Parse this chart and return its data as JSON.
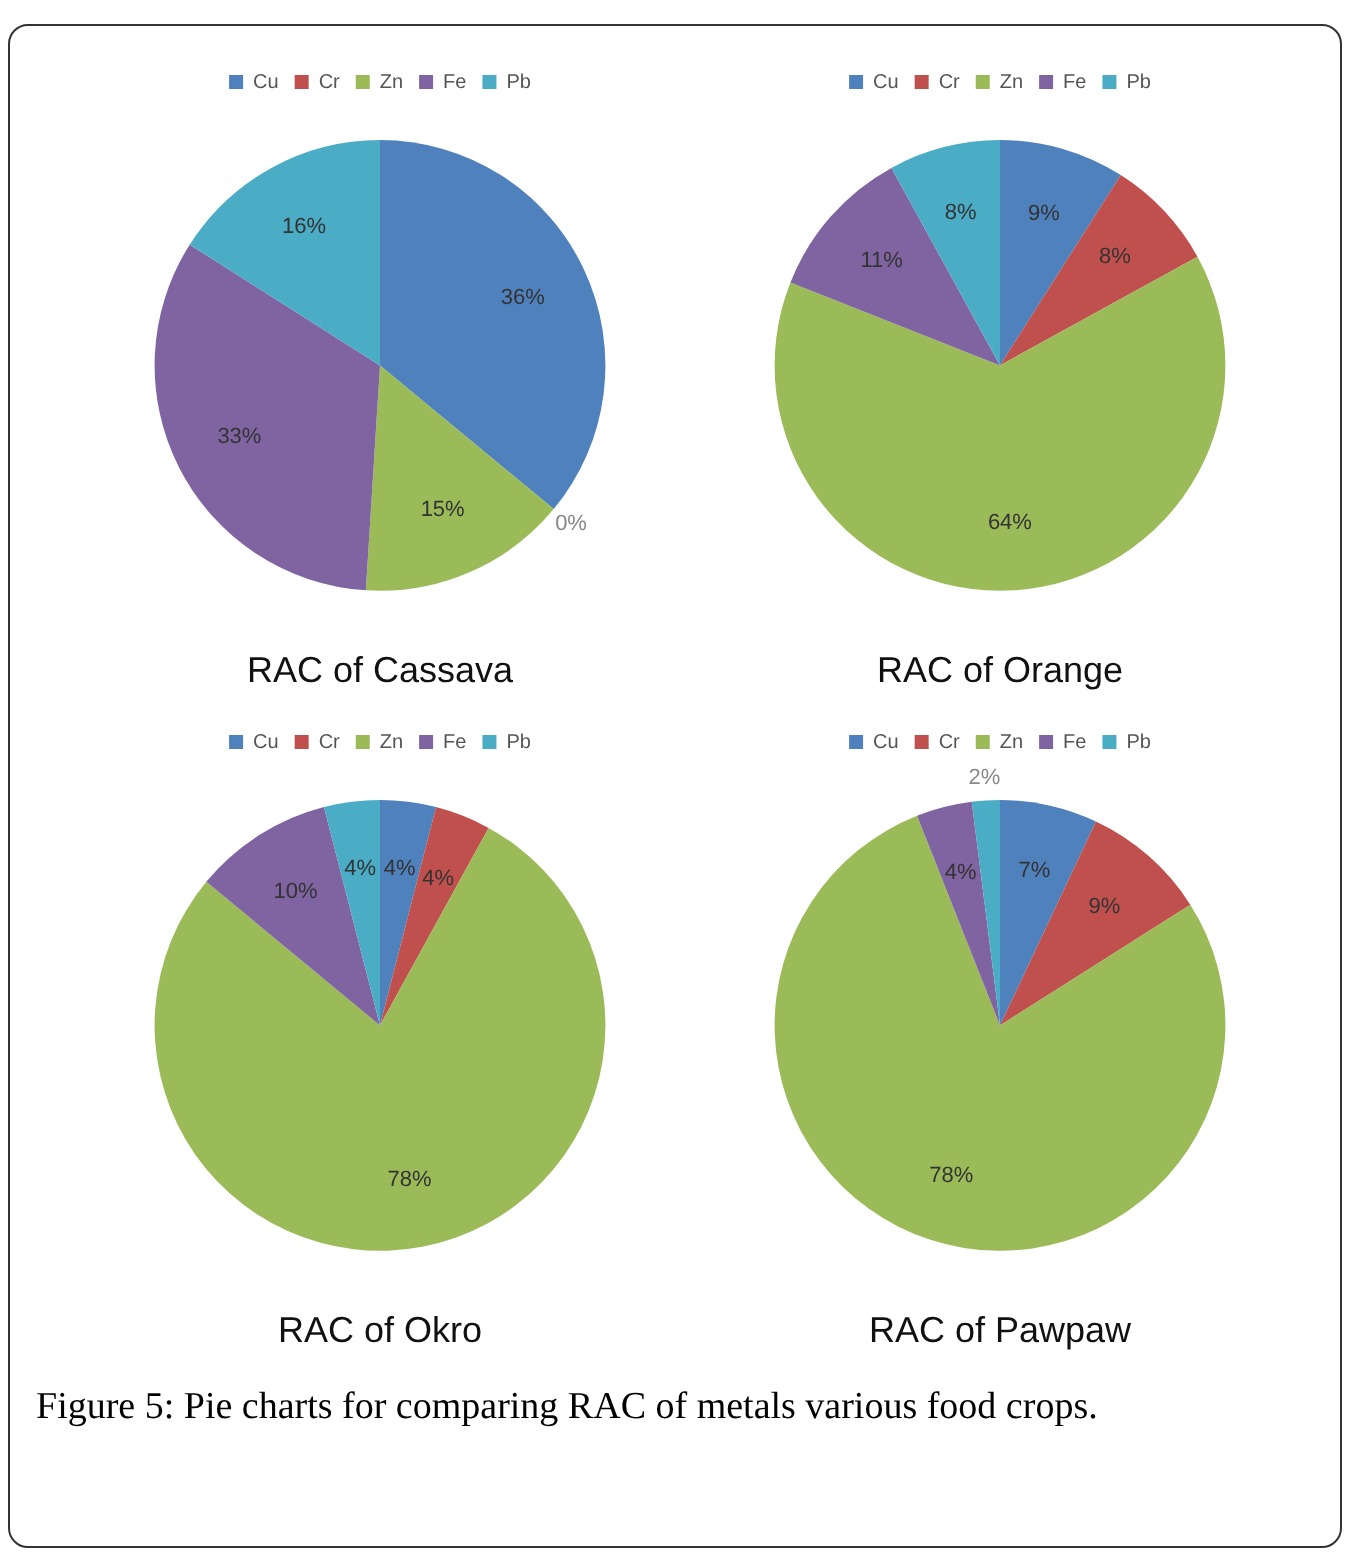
{
  "chart_data": [
    {
      "type": "pie",
      "title": "RAC of Cassava",
      "categories": [
        "Cu",
        "Cr",
        "Zn",
        "Fe",
        "Pb"
      ],
      "values": [
        36,
        0,
        15,
        33,
        16
      ],
      "colors": [
        "#4f81bd",
        "#c0504d",
        "#9bbb59",
        "#8064a2",
        "#4bacc6"
      ],
      "value_labels": [
        "36%",
        "0%",
        "15%",
        "33%",
        "16%"
      ],
      "legend": "top"
    },
    {
      "type": "pie",
      "title": "RAC of Orange",
      "categories": [
        "Cu",
        "Cr",
        "Zn",
        "Fe",
        "Pb"
      ],
      "values": [
        9,
        8,
        64,
        11,
        8
      ],
      "colors": [
        "#4f81bd",
        "#c0504d",
        "#9bbb59",
        "#8064a2",
        "#4bacc6"
      ],
      "value_labels": [
        "9%",
        "8%",
        "64%",
        "11%",
        "8%"
      ],
      "legend": "top"
    },
    {
      "type": "pie",
      "title": "RAC of Okro",
      "categories": [
        "Cu",
        "Cr",
        "Zn",
        "Fe",
        "Pb"
      ],
      "values": [
        4,
        4,
        78,
        10,
        4
      ],
      "colors": [
        "#4f81bd",
        "#c0504d",
        "#9bbb59",
        "#8064a2",
        "#4bacc6"
      ],
      "value_labels": [
        "4%",
        "4%",
        "78%",
        "10%",
        "4%"
      ],
      "legend": "top"
    },
    {
      "type": "pie",
      "title": "RAC of Pawpaw",
      "categories": [
        "Cu",
        "Cr",
        "Zn",
        "Fe",
        "Pb"
      ],
      "values": [
        7,
        9,
        78,
        4,
        2
      ],
      "colors": [
        "#4f81bd",
        "#c0504d",
        "#9bbb59",
        "#8064a2",
        "#4bacc6"
      ],
      "value_labels": [
        "7%",
        "9%",
        "78%",
        "4%",
        "2%"
      ],
      "legend": "top",
      "annotations": [
        "Figure 5: Pie charts for comparing RAC of metals various food crops."
      ]
    }
  ]
}
